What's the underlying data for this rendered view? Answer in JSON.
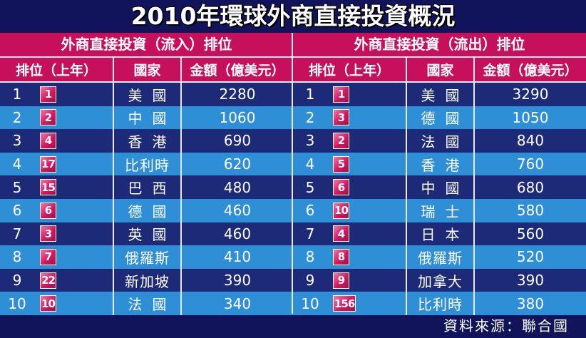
{
  "title": "2010年環球外商直接投資概況",
  "inflow": {
    "header": "外商直接投資（流入）排位",
    "columns": [
      "排位（上年）",
      "國家",
      "金額（億美元）"
    ],
    "rows": [
      {
        "rank": "1",
        "prev": "1",
        "country": "美 國",
        "amount": "2280"
      },
      {
        "rank": "2",
        "prev": "2",
        "country": "中 國",
        "amount": "1060"
      },
      {
        "rank": "3",
        "prev": "4",
        "country": "香 港",
        "amount": "690"
      },
      {
        "rank": "4",
        "prev": "17",
        "country": "比利時",
        "amount": "620"
      },
      {
        "rank": "5",
        "prev": "15",
        "country": "巴 西",
        "amount": "480"
      },
      {
        "rank": "6",
        "prev": "6",
        "country": "德 國",
        "amount": "460"
      },
      {
        "rank": "7",
        "prev": "3",
        "country": "英 國",
        "amount": "460"
      },
      {
        "rank": "8",
        "prev": "7",
        "country": "俄羅斯",
        "amount": "410"
      },
      {
        "rank": "9",
        "prev": "22",
        "country": "新加坡",
        "amount": "390"
      },
      {
        "rank": "10",
        "prev": "10",
        "country": "法 國",
        "amount": "340"
      }
    ]
  },
  "outflow": {
    "header": "外商直接投資（流出）排位",
    "columns": [
      "排位（上年）",
      "國家",
      "金額（億美元）"
    ],
    "rows": [
      {
        "rank": "1",
        "prev": "1",
        "country": "美 國",
        "amount": "3290"
      },
      {
        "rank": "2",
        "prev": "3",
        "country": "德 國",
        "amount": "1050"
      },
      {
        "rank": "3",
        "prev": "2",
        "country": "法 國",
        "amount": "840"
      },
      {
        "rank": "4",
        "prev": "5",
        "country": "香 港",
        "amount": "760"
      },
      {
        "rank": "5",
        "prev": "6",
        "country": "中 國",
        "amount": "680"
      },
      {
        "rank": "6",
        "prev": "10",
        "country": "瑞 士",
        "amount": "580"
      },
      {
        "rank": "7",
        "prev": "4",
        "country": "日 本",
        "amount": "560"
      },
      {
        "rank": "8",
        "prev": "8",
        "country": "俄羅斯",
        "amount": "520"
      },
      {
        "rank": "9",
        "prev": "9",
        "country": "加拿大",
        "amount": "390"
      },
      {
        "rank": "10",
        "prev": "156",
        "country": "比利時",
        "amount": "380"
      }
    ]
  },
  "source": "資料來源：聯合國",
  "colors": {
    "header_bg": "#c7105c",
    "row_dark": "#1c2a78",
    "row_light": "#2f8fd6",
    "page_bg": "#11145a",
    "badge": "#d4175f"
  }
}
